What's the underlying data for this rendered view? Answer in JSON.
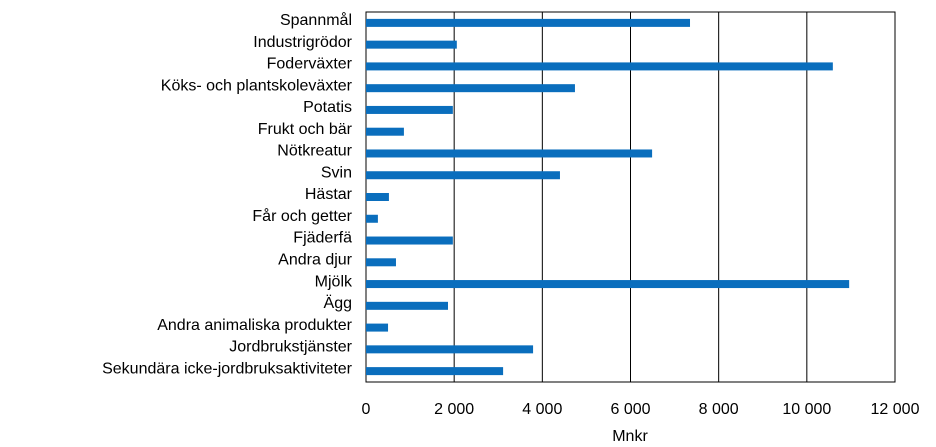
{
  "chart_data": {
    "type": "barh",
    "x_label": "Mnkr",
    "color": "#0a6ebd",
    "grid": true,
    "categories": [
      "Spannmål",
      "Industrigrödor",
      "Foderväxter",
      "Köks- och plantskoleväxter",
      "Potatis",
      "Frukt och bär",
      "Nötkreatur",
      "Svin",
      "Hästar",
      "Får och getter",
      "Fjäderfä",
      "Andra djur",
      "Mjölk",
      "Ägg",
      "Andra animaliska produkter",
      "Jordbrukstjänster",
      "Sekundära icke-jordbruksaktiviteter"
    ],
    "values": [
      7350,
      2060,
      10590,
      4740,
      1970,
      860,
      6490,
      4400,
      520,
      270,
      1970,
      680,
      10960,
      1860,
      500,
      3790,
      3110
    ],
    "xlim": [
      0,
      12000
    ],
    "xticks": [
      0,
      {
        "value": 2000,
        "label": "2 000"
      },
      {
        "value": 4000,
        "label": "4 000"
      },
      {
        "value": 6000,
        "label": "6 000"
      },
      {
        "value": 8000,
        "label": "8 000"
      },
      {
        "value": 10000,
        "label": "10 000"
      },
      {
        "value": 12000,
        "label": "12 000"
      }
    ]
  }
}
